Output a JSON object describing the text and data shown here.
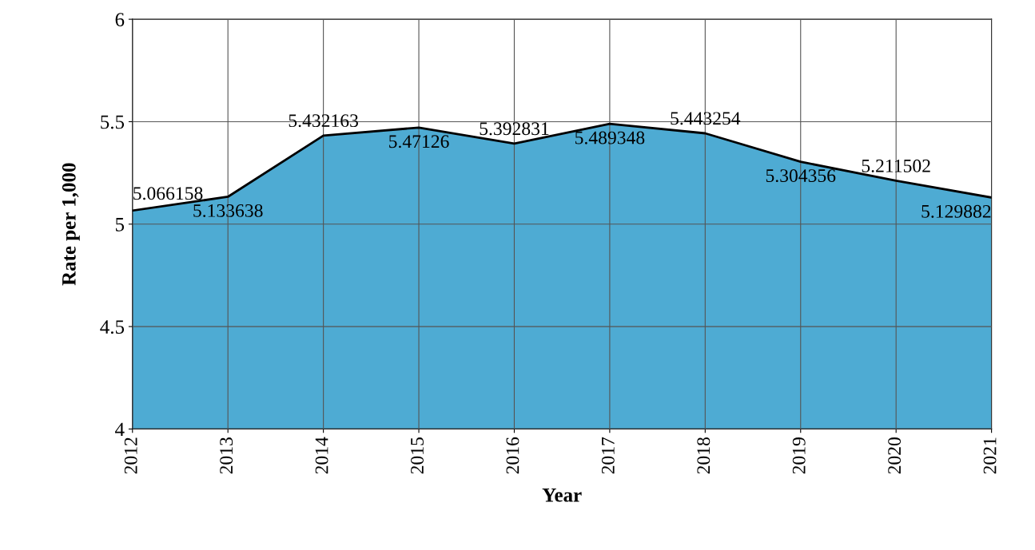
{
  "chart_data": {
    "type": "area",
    "xlabel": "Year",
    "ylabel": "Rate per 1,000",
    "categories": [
      "2012",
      "2013",
      "2014",
      "2015",
      "2016",
      "2017",
      "2018",
      "2019",
      "2020",
      "2021"
    ],
    "series": [
      {
        "color": "#4eabd3",
        "values": [
          5.066158,
          5.133638,
          5.432163,
          5.47126,
          5.392831,
          5.489348,
          5.443254,
          5.304356,
          5.211502,
          5.129882
        ]
      }
    ],
    "ylim": [
      4,
      6
    ],
    "yticks": [
      4,
      4.5,
      5,
      5.5,
      6
    ],
    "grid": true,
    "data_labels": true
  }
}
